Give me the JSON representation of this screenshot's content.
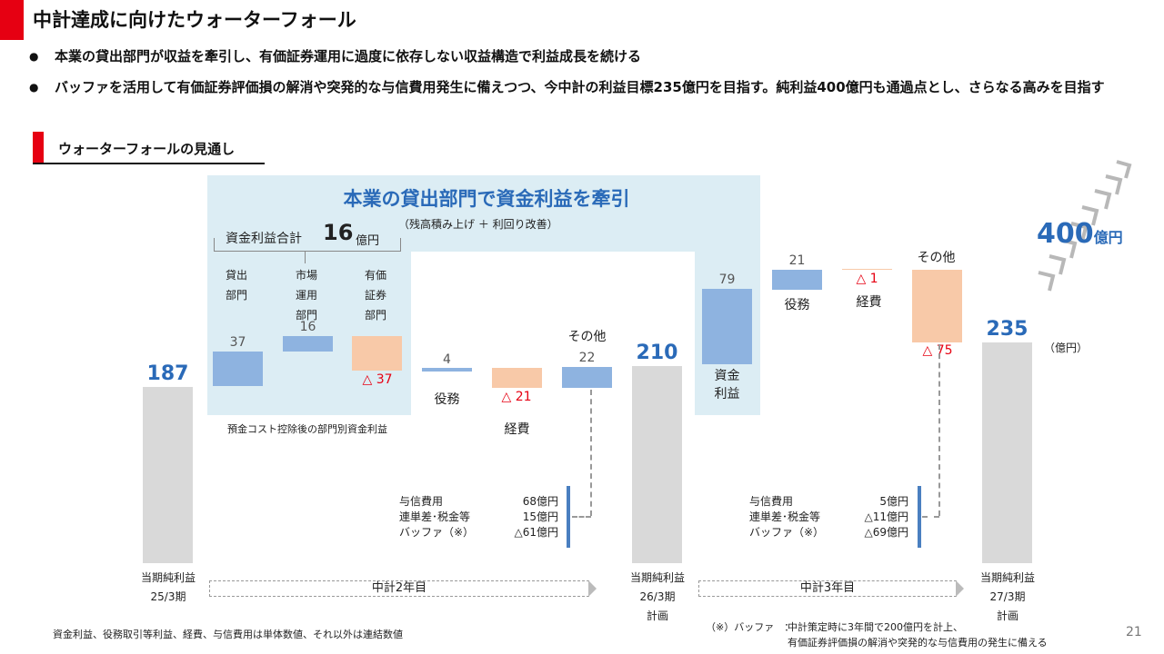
{
  "header": {
    "title": "中計達成に向けたウォーターフォール",
    "bullets": [
      "本業の貸出部門が収益を牽引し、有価証券運用に過度に依存しない収益構造で利益成長を続ける",
      "バッファを活用して有価証券評価損の解消や突発的な与信費用発生に備えつつ、今中計の利益目標235億円を目指す。純利益400億円も通過点とし、さらなる高みを目指す"
    ],
    "bullet_marker": "●"
  },
  "section": {
    "title": "ウォーターフォールの見通し"
  },
  "panel": {
    "headline": "本業の貸出部門で資金利益を牽引",
    "sub": "（残高積み上げ ＋ 利回り改善）",
    "total_label": "資金利益合計",
    "total_value": "16",
    "total_unit": "億円",
    "cat1": [
      "貸出",
      "部門"
    ],
    "cat2": [
      "市場",
      "運用",
      "部門"
    ],
    "cat3": [
      "有価",
      "証券",
      "部門"
    ],
    "footnote": "預金コスト控除後の部門別資金利益"
  },
  "labels": {
    "v187": "187",
    "v37": "37",
    "v16": "16",
    "v_m37": "△ 37",
    "v4": "4",
    "v_m21": "△ 21",
    "v22": "22",
    "v210": "210",
    "v79": "79",
    "v21": "21",
    "v_m1": "△ 1",
    "v_m75": "△ 75",
    "v235": "235",
    "yakumu": "役務",
    "keihi": "経費",
    "sonota": "その他",
    "shikin1": "資金",
    "shikin2": "利益",
    "unit": "（億円）",
    "target_value": "400",
    "target_unit": "億円"
  },
  "breakdown_left": {
    "rows": [
      {
        "name": "与信費用",
        "value": "68億円"
      },
      {
        "name": "連単差･税金等",
        "value": "15億円"
      },
      {
        "name": "バッファ（※）",
        "value": "△61億円"
      }
    ]
  },
  "breakdown_right": {
    "rows": [
      {
        "name": "与信費用",
        "value": "5億円"
      },
      {
        "name": "連単差･税金等",
        "value": "△11億円"
      },
      {
        "name": "バッファ（※）",
        "value": "△69億円"
      }
    ]
  },
  "axis": {
    "p1": [
      "当期純利益",
      "25/3期"
    ],
    "p2": [
      "当期純利益",
      "26/3期",
      "計画"
    ],
    "p3": [
      "当期純利益",
      "27/3期",
      "計画"
    ],
    "band1": "中計2年目",
    "band2": "中計3年目"
  },
  "footer": {
    "note_left": "資金利益、役務取引等利益、経費、与信費用は単体数値、それ以外は連結数値",
    "note_right_label": "（※）バッファ　：",
    "note_right_1": "中計策定時に3年間で200億円を計上、",
    "note_right_2": "有価証券評価損の解消や突発的な与信費用の発生に備える",
    "page": "21"
  },
  "colors": {
    "accent": "#e60012",
    "panel": "#dcedf4",
    "increase": "#8eb3e0",
    "decrease": "#f8c9a8",
    "total": "#d9d9d9",
    "value_text": "#2a6ab8"
  },
  "chart_data": {
    "type": "waterfall",
    "unit": "億円",
    "steps": [
      {
        "label": "当期純利益 25/3期",
        "kind": "total",
        "value": 187
      },
      {
        "label": "貸出部門",
        "kind": "delta",
        "value": 37
      },
      {
        "label": "市場運用部門",
        "kind": "delta",
        "value": 16
      },
      {
        "label": "有価証券部門",
        "kind": "delta",
        "value": -37
      },
      {
        "label": "役務",
        "kind": "delta",
        "value": 4
      },
      {
        "label": "経費",
        "kind": "delta",
        "value": -21
      },
      {
        "label": "その他",
        "kind": "delta",
        "value": 22
      },
      {
        "label": "当期純利益 26/3期 計画",
        "kind": "total",
        "value": 210
      },
      {
        "label": "資金利益",
        "kind": "delta",
        "value": 79
      },
      {
        "label": "役務",
        "kind": "delta",
        "value": 21
      },
      {
        "label": "経費",
        "kind": "delta",
        "value": -1
      },
      {
        "label": "その他",
        "kind": "delta",
        "value": -75
      },
      {
        "label": "当期純利益 27/3期 計画",
        "kind": "total",
        "value": 235
      }
    ],
    "target": 400
  }
}
